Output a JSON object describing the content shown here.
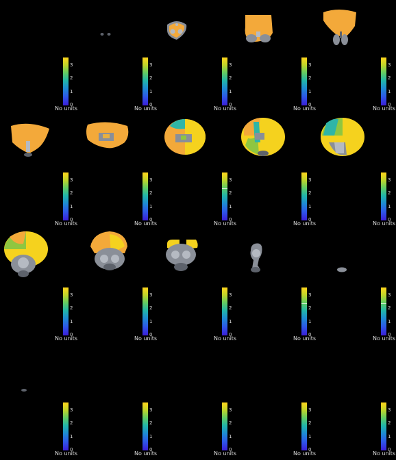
{
  "figure": {
    "rows": 4,
    "cols": 5,
    "colormap": "viridis",
    "background": "#000000"
  },
  "colorbar": {
    "ticks": [
      "0",
      "1",
      "2",
      "3"
    ],
    "unit_label": "No units",
    "range": [
      0,
      3.6
    ]
  },
  "panels": [
    {
      "slice_index": 1,
      "marker_value": null
    },
    {
      "slice_index": 2,
      "marker_value": null
    },
    {
      "slice_index": 3,
      "marker_value": null
    },
    {
      "slice_index": 4,
      "marker_value": null
    },
    {
      "slice_index": 5,
      "marker_value": null
    },
    {
      "slice_index": 6,
      "marker_value": null
    },
    {
      "slice_index": 7,
      "marker_value": null
    },
    {
      "slice_index": 8,
      "marker_value": 2.4
    },
    {
      "slice_index": 9,
      "marker_value": null
    },
    {
      "slice_index": 10,
      "marker_value": null
    },
    {
      "slice_index": 11,
      "marker_value": null
    },
    {
      "slice_index": 12,
      "marker_value": null
    },
    {
      "slice_index": 13,
      "marker_value": null
    },
    {
      "slice_index": 14,
      "marker_value": 2.4
    },
    {
      "slice_index": 15,
      "marker_value": 2.4
    },
    {
      "slice_index": 16,
      "marker_value": null
    },
    {
      "slice_index": 17,
      "marker_value": null
    },
    {
      "slice_index": 18,
      "marker_value": null
    },
    {
      "slice_index": 19,
      "marker_value": null
    },
    {
      "slice_index": 20,
      "marker_value": null
    }
  ]
}
